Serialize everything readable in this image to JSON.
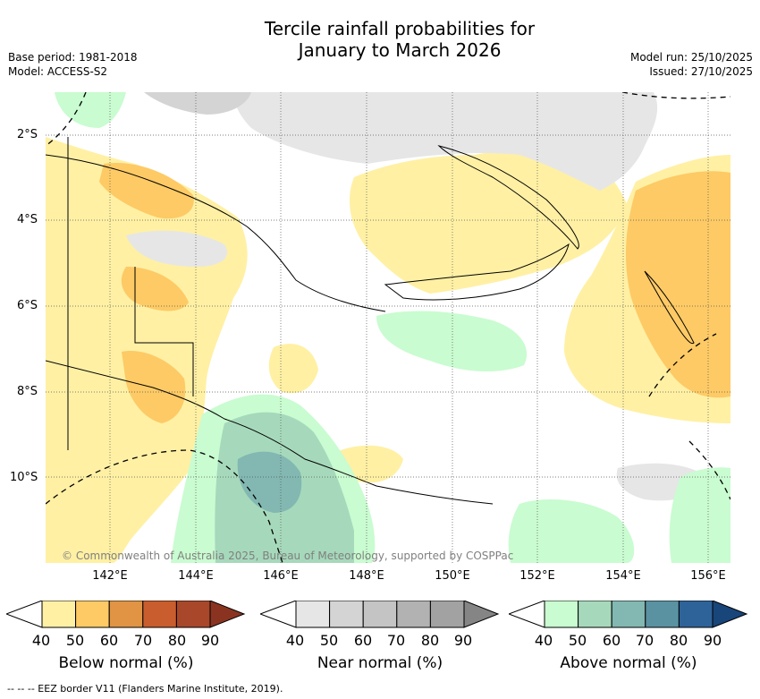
{
  "title_line1": "Tercile rainfall probabilities for",
  "title_line2": "January to March 2026",
  "base_period": "Base period: 1981-2018",
  "model": "Model: ACCESS-S2",
  "model_run": "Model run: 25/10/2025",
  "issued": "Issued: 27/10/2025",
  "map": {
    "latitude_labels": [
      "2°S",
      "4°S",
      "6°S",
      "8°S",
      "10°S"
    ],
    "longitude_labels": [
      "142°E",
      "144°E",
      "146°E",
      "148°E",
      "150°E",
      "152°E",
      "154°E",
      "156°E"
    ],
    "copyright": "© Commonwealth of Australia 2025, Bureau of Meteorology, supported by COSPPac"
  },
  "colorbars": [
    {
      "title": "Below normal (%)",
      "ticks": [
        "40",
        "50",
        "60",
        "70",
        "80",
        "90"
      ],
      "colors": [
        "#fff0a4",
        "#fdca65",
        "#e09444",
        "#c95d2d",
        "#a9472a",
        "#8a3321"
      ]
    },
    {
      "title": "Near normal (%)",
      "ticks": [
        "40",
        "50",
        "60",
        "70",
        "80",
        "90"
      ],
      "colors": [
        "#e6e6e6",
        "#d4d4d4",
        "#c4c4c4",
        "#b2b2b2",
        "#a2a2a2",
        "#858585"
      ]
    },
    {
      "title": "Above normal (%)",
      "ticks": [
        "40",
        "50",
        "60",
        "70",
        "80",
        "90"
      ],
      "colors": [
        "#c9fcd0",
        "#a6d9bb",
        "#82b8b1",
        "#5a92a1",
        "#2e6399",
        "#18457a"
      ]
    }
  ],
  "footer": "--  --  -- EEZ border V11 (Flanders Marine Institute, 2019)."
}
